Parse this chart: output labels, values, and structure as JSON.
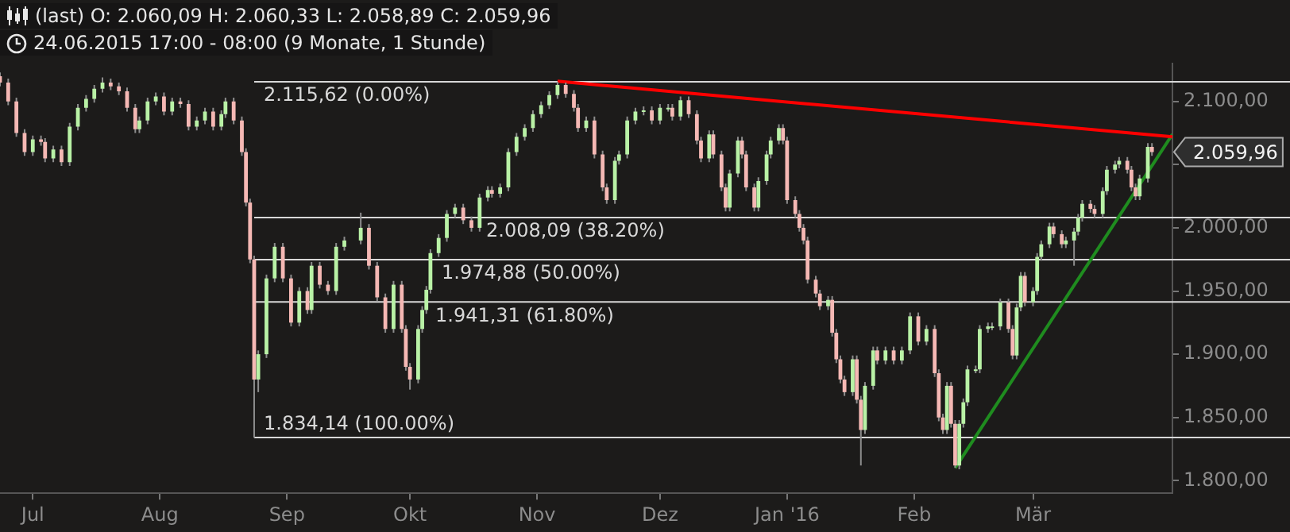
{
  "chart_data": {
    "type": "candlestick",
    "title": "(last)  O: 2.060,09  H: 2.060,33  L: 2.058,89  C: 2.059,96",
    "subtitle": "24.06.2015 17:00 - 08:00 (9 Monate, 1 Stunde)",
    "x": [
      "2015-06-23",
      "2015-06-25",
      "2015-06-27",
      "2015-06-29",
      "2015-07-01",
      "2015-07-03",
      "2015-07-04",
      "2015-07-06",
      "2015-07-08",
      "2015-07-10",
      "2015-07-12",
      "2015-07-14",
      "2015-07-16",
      "2015-07-18",
      "2015-07-20",
      "2015-07-22",
      "2015-07-24",
      "2015-07-26",
      "2015-07-27",
      "2015-07-29",
      "2015-07-31",
      "2015-08-02",
      "2015-08-04",
      "2015-08-06",
      "2015-08-08",
      "2015-08-10",
      "2015-08-12",
      "2015-08-14",
      "2015-08-16",
      "2015-08-17",
      "2015-08-19",
      "2015-08-21",
      "2015-08-22",
      "2015-08-23",
      "2015-08-24",
      "2015-08-25",
      "2015-08-27",
      "2015-08-29",
      "2015-08-31",
      "2015-09-02",
      "2015-09-04",
      "2015-09-06",
      "2015-09-07",
      "2015-09-09",
      "2015-09-11",
      "2015-09-13",
      "2015-09-15",
      "2015-09-19",
      "2015-09-21",
      "2015-09-23",
      "2015-09-25",
      "2015-09-27",
      "2015-09-29",
      "2015-09-30",
      "2015-10-01",
      "2015-10-03",
      "2015-10-04",
      "2015-10-05",
      "2015-10-06",
      "2015-10-08",
      "2015-10-10",
      "2015-10-12",
      "2015-10-14",
      "2015-10-16",
      "2015-10-18",
      "2015-10-20",
      "2015-10-21",
      "2015-10-23",
      "2015-10-25",
      "2015-10-27",
      "2015-10-29",
      "2015-10-31",
      "2015-11-02",
      "2015-11-04",
      "2015-11-06",
      "2015-11-08",
      "2015-11-10",
      "2015-11-11",
      "2015-11-13",
      "2015-11-15",
      "2015-11-17",
      "2015-11-18",
      "2015-11-20",
      "2015-11-21",
      "2015-11-23",
      "2015-11-25",
      "2015-11-27",
      "2015-11-29",
      "2015-12-01",
      "2015-12-03",
      "2015-12-04",
      "2015-12-06",
      "2015-12-08",
      "2015-12-10",
      "2015-12-11",
      "2015-12-13",
      "2015-12-14",
      "2015-12-16",
      "2015-12-17",
      "2015-12-18",
      "2015-12-20",
      "2015-12-21",
      "2015-12-22",
      "2015-12-24",
      "2015-12-25",
      "2015-12-27",
      "2015-12-28",
      "2015-12-30",
      "2015-12-31",
      "2016-01-01",
      "2016-01-03",
      "2016-01-04",
      "2016-01-05",
      "2016-01-06",
      "2016-01-08",
      "2016-01-09",
      "2016-01-11",
      "2016-01-12",
      "2016-01-13",
      "2016-01-14",
      "2016-01-15",
      "2016-01-17",
      "2016-01-18",
      "2016-01-19",
      "2016-01-20",
      "2016-01-22",
      "2016-01-23",
      "2016-01-25",
      "2016-01-27",
      "2016-01-29",
      "2016-01-31",
      "2016-02-02",
      "2016-02-04",
      "2016-02-06",
      "2016-02-07",
      "2016-02-08",
      "2016-02-09",
      "2016-02-10",
      "2016-02-11",
      "2016-02-12",
      "2016-02-13",
      "2016-02-14",
      "2016-02-16",
      "2016-02-17",
      "2016-02-19",
      "2016-02-20",
      "2016-02-22",
      "2016-02-24",
      "2016-02-25",
      "2016-02-26",
      "2016-02-27",
      "2016-02-28",
      "2016-03-01",
      "2016-03-02",
      "2016-03-03",
      "2016-03-05",
      "2016-03-06",
      "2016-03-08",
      "2016-03-09",
      "2016-03-11",
      "2016-03-12",
      "2016-03-13",
      "2016-03-15",
      "2016-03-16",
      "2016-03-18",
      "2016-03-19",
      "2016-03-21",
      "2016-03-22",
      "2016-03-24",
      "2016-03-25",
      "2016-03-26",
      "2016-03-27",
      "2016-03-29",
      "2016-03-30"
    ],
    "ohlc": [
      [
        2120,
        2123,
        2112,
        2115
      ],
      [
        2115,
        2118,
        2097,
        2100
      ],
      [
        2100,
        2103,
        2072,
        2075
      ],
      [
        2075,
        2078,
        2057,
        2060
      ],
      [
        2060,
        2073,
        2057,
        2070
      ],
      [
        2070,
        2073,
        2065,
        2068
      ],
      [
        2068,
        2071,
        2052,
        2055
      ],
      [
        2055,
        2065,
        2052,
        2062
      ],
      [
        2062,
        2065,
        2049,
        2052
      ],
      [
        2052,
        2083,
        2049,
        2080
      ],
      [
        2080,
        2098,
        2077,
        2095
      ],
      [
        2095,
        2105,
        2092,
        2102
      ],
      [
        2102,
        2113,
        2099,
        2110
      ],
      [
        2110,
        2119,
        2107,
        2115
      ],
      [
        2115,
        2118,
        2109,
        2112
      ],
      [
        2112,
        2115,
        2105,
        2108
      ],
      [
        2108,
        2111,
        2092,
        2095
      ],
      [
        2095,
        2098,
        2075,
        2078
      ],
      [
        2078,
        2088,
        2075,
        2085
      ],
      [
        2085,
        2103,
        2082,
        2100
      ],
      [
        2100,
        2107,
        2097,
        2104
      ],
      [
        2104,
        2107,
        2089,
        2092
      ],
      [
        2092,
        2103,
        2089,
        2100
      ],
      [
        2100,
        2103,
        2095,
        2098
      ],
      [
        2098,
        2101,
        2077,
        2080
      ],
      [
        2080,
        2088,
        2077,
        2085
      ],
      [
        2085,
        2095,
        2082,
        2092
      ],
      [
        2092,
        2095,
        2077,
        2080
      ],
      [
        2080,
        2093,
        2077,
        2090
      ],
      [
        2090,
        2103,
        2087,
        2100
      ],
      [
        2100,
        2103,
        2082,
        2085
      ],
      [
        2085,
        2088,
        2057,
        2060
      ],
      [
        2060,
        2063,
        2017,
        2020
      ],
      [
        2020,
        2023,
        1972,
        1975
      ],
      [
        1975,
        1978,
        1834,
        1880
      ],
      [
        1880,
        1903,
        1870,
        1900
      ],
      [
        1900,
        1963,
        1897,
        1960
      ],
      [
        1960,
        1988,
        1957,
        1985
      ],
      [
        1985,
        1988,
        1957,
        1960
      ],
      [
        1960,
        1963,
        1922,
        1925
      ],
      [
        1925,
        1953,
        1922,
        1950
      ],
      [
        1950,
        1953,
        1932,
        1935
      ],
      [
        1935,
        1973,
        1932,
        1970
      ],
      [
        1970,
        1973,
        1952,
        1955
      ],
      [
        1955,
        1958,
        1947,
        1950
      ],
      [
        1950,
        1988,
        1947,
        1985
      ],
      [
        1985,
        1993,
        1982,
        1990
      ],
      [
        1990,
        2012,
        1987,
        2000
      ],
      [
        2000,
        2003,
        1967,
        1970
      ],
      [
        1970,
        1973,
        1942,
        1945
      ],
      [
        1945,
        1948,
        1917,
        1920
      ],
      [
        1920,
        1958,
        1917,
        1955
      ],
      [
        1955,
        1958,
        1917,
        1920
      ],
      [
        1920,
        1923,
        1887,
        1890
      ],
      [
        1890,
        1893,
        1872,
        1880
      ],
      [
        1880,
        1923,
        1877,
        1920
      ],
      [
        1920,
        1938,
        1917,
        1935
      ],
      [
        1935,
        1954,
        1932,
        1951
      ],
      [
        1951,
        1983,
        1948,
        1980
      ],
      [
        1980,
        1995,
        1977,
        1992
      ],
      [
        1992,
        2014,
        1989,
        2011
      ],
      [
        2011,
        2019,
        2008,
        2016
      ],
      [
        2016,
        2019,
        2003,
        2006
      ],
      [
        2006,
        2009,
        1997,
        2000
      ],
      [
        2000,
        2027,
        1997,
        2024
      ],
      [
        2024,
        2033,
        2021,
        2030
      ],
      [
        2030,
        2033,
        2024,
        2027
      ],
      [
        2027,
        2035,
        2024,
        2032
      ],
      [
        2032,
        2063,
        2029,
        2060
      ],
      [
        2060,
        2075,
        2057,
        2072
      ],
      [
        2072,
        2082,
        2069,
        2079
      ],
      [
        2079,
        2093,
        2076,
        2090
      ],
      [
        2090,
        2100,
        2087,
        2097
      ],
      [
        2097,
        2108,
        2094,
        2105
      ],
      [
        2105,
        2115.62,
        2102,
        2113
      ],
      [
        2113,
        2115,
        2103,
        2106
      ],
      [
        2106,
        2109,
        2092,
        2095
      ],
      [
        2095,
        2098,
        2076,
        2079
      ],
      [
        2079,
        2088,
        2076,
        2085
      ],
      [
        2085,
        2088,
        2055,
        2058
      ],
      [
        2058,
        2061,
        2029,
        2032
      ],
      [
        2032,
        2035,
        2019,
        2022
      ],
      [
        2022,
        2056,
        2019,
        2053
      ],
      [
        2053,
        2061,
        2050,
        2058
      ],
      [
        2058,
        2088,
        2055,
        2085
      ],
      [
        2085,
        2095,
        2082,
        2092
      ],
      [
        2092,
        2096,
        2089,
        2093
      ],
      [
        2093,
        2096,
        2082,
        2085
      ],
      [
        2085,
        2098,
        2082,
        2095
      ],
      [
        2095,
        2098,
        2092,
        2095
      ],
      [
        2095,
        2098,
        2085,
        2088
      ],
      [
        2088,
        2104,
        2085,
        2101
      ],
      [
        2101,
        2104,
        2087,
        2090
      ],
      [
        2090,
        2093,
        2066,
        2069
      ],
      [
        2069,
        2072,
        2052,
        2055
      ],
      [
        2055,
        2077,
        2052,
        2074
      ],
      [
        2074,
        2077,
        2055,
        2058
      ],
      [
        2058,
        2061,
        2029,
        2032
      ],
      [
        2032,
        2035,
        2013,
        2016
      ],
      [
        2016,
        2046,
        2013,
        2043
      ],
      [
        2043,
        2072,
        2040,
        2069
      ],
      [
        2069,
        2072,
        2055,
        2058
      ],
      [
        2058,
        2061,
        2029,
        2032
      ],
      [
        2032,
        2035,
        2013,
        2016
      ],
      [
        2016,
        2040,
        2013,
        2037
      ],
      [
        2037,
        2061,
        2034,
        2058
      ],
      [
        2058,
        2072,
        2055,
        2069
      ],
      [
        2069,
        2082,
        2066,
        2079
      ],
      [
        2079,
        2082,
        2066,
        2069
      ],
      [
        2069,
        2072,
        2019,
        2022
      ],
      [
        2022,
        2025,
        2008,
        2011
      ],
      [
        2011,
        2014,
        1997,
        2000
      ],
      [
        2000,
        2003,
        1987,
        1990
      ],
      [
        1990,
        1993,
        1956,
        1959
      ],
      [
        1959,
        1962,
        1945,
        1948
      ],
      [
        1948,
        1951,
        1935,
        1938
      ],
      [
        1938,
        1946,
        1935,
        1943
      ],
      [
        1943,
        1946,
        1914,
        1917
      ],
      [
        1917,
        1920,
        1893,
        1896
      ],
      [
        1896,
        1899,
        1877,
        1880
      ],
      [
        1880,
        1883,
        1867,
        1870
      ],
      [
        1870,
        1899,
        1867,
        1896
      ],
      [
        1896,
        1899,
        1861,
        1864
      ],
      [
        1864,
        1867,
        1812,
        1840
      ],
      [
        1840,
        1878,
        1837,
        1875
      ],
      [
        1875,
        1906,
        1872,
        1903
      ],
      [
        1903,
        1906,
        1892,
        1895
      ],
      [
        1895,
        1906,
        1892,
        1903
      ],
      [
        1903,
        1906,
        1892,
        1895
      ],
      [
        1895,
        1906,
        1892,
        1903
      ],
      [
        1903,
        1933,
        1900,
        1930
      ],
      [
        1930,
        1933,
        1907,
        1910
      ],
      [
        1910,
        1923,
        1907,
        1920
      ],
      [
        1920,
        1923,
        1882,
        1885
      ],
      [
        1885,
        1888,
        1847,
        1850
      ],
      [
        1850,
        1853,
        1837,
        1840
      ],
      [
        1840,
        1878,
        1837,
        1875
      ],
      [
        1875,
        1878,
        1842,
        1845
      ],
      [
        1845,
        1848,
        1810,
        1812
      ],
      [
        1812,
        1848,
        1809,
        1845
      ],
      [
        1845,
        1865,
        1842,
        1862
      ],
      [
        1862,
        1891,
        1859,
        1888
      ],
      [
        1888,
        1891,
        1885,
        1888
      ],
      [
        1888,
        1923,
        1885,
        1920
      ],
      [
        1920,
        1925,
        1917,
        1922
      ],
      [
        1922,
        1925,
        1919,
        1922
      ],
      [
        1922,
        1944,
        1919,
        1941
      ],
      [
        1941,
        1944,
        1917,
        1920
      ],
      [
        1920,
        1923,
        1896,
        1899
      ],
      [
        1899,
        1940,
        1896,
        1937
      ],
      [
        1937,
        1965,
        1934,
        1962
      ],
      [
        1962,
        1965,
        1938,
        1941
      ],
      [
        1941,
        1953,
        1938,
        1950
      ],
      [
        1950,
        1980,
        1947,
        1977
      ],
      [
        1977,
        1990,
        1974,
        1987
      ],
      [
        1987,
        2004,
        1984,
        2001
      ],
      [
        2001,
        2004,
        1992,
        1995
      ],
      [
        1995,
        1998,
        1984,
        1987
      ],
      [
        1987,
        1993,
        1984,
        1990
      ],
      [
        1990,
        2000,
        1970,
        1997
      ],
      [
        1997,
        2011,
        1994,
        2008
      ],
      [
        2008,
        2022,
        2005,
        2019
      ],
      [
        2019,
        2022,
        2012,
        2015
      ],
      [
        2015,
        2018,
        2008,
        2011
      ],
      [
        2011,
        2032,
        2008,
        2029
      ],
      [
        2029,
        2049,
        2026,
        2046
      ],
      [
        2046,
        2053,
        2043,
        2050
      ],
      [
        2050,
        2056,
        2047,
        2053
      ],
      [
        2053,
        2056,
        2043,
        2046
      ],
      [
        2046,
        2049,
        2029,
        2032
      ],
      [
        2032,
        2035,
        2022,
        2025
      ],
      [
        2025,
        2042,
        2022,
        2039
      ],
      [
        2039,
        2067,
        2036,
        2064
      ],
      [
        2064,
        2067,
        2057,
        2059.96
      ]
    ],
    "series": [
      {
        "type": "line",
        "color": "#ff0000",
        "x": [
          "2015-11-06",
          "2016-04-04"
        ],
        "values": [
          2116,
          2072
        ]
      },
      {
        "type": "line",
        "color": "#1f8c1f",
        "x": [
          "2016-02-11",
          "2016-04-04"
        ],
        "values": [
          1810,
          2074
        ]
      }
    ],
    "xlim": [
      "2015-06-23",
      "2016-04-04"
    ],
    "xticks": [
      {
        "value": "2015-07-01",
        "label": "Jul"
      },
      {
        "value": "2015-08-01",
        "label": "Aug"
      },
      {
        "value": "2015-09-01",
        "label": "Sep"
      },
      {
        "value": "2015-10-01",
        "label": "Okt"
      },
      {
        "value": "2015-11-01",
        "label": "Nov"
      },
      {
        "value": "2015-12-01",
        "label": "Dez"
      },
      {
        "value": "2016-01-01",
        "label": "Jan '16"
      },
      {
        "value": "2016-02-01",
        "label": "Feb"
      },
      {
        "value": "2016-03-01",
        "label": "Mär"
      }
    ],
    "ylim": [
      1790,
      2130
    ],
    "yticks": [
      {
        "value": 1800,
        "label": "1.800,00"
      },
      {
        "value": 1850,
        "label": "1.850,00"
      },
      {
        "value": 1900,
        "label": "1.900,00"
      },
      {
        "value": 1950,
        "label": "1.950,00"
      },
      {
        "value": 2000,
        "label": "2.000,00"
      },
      {
        "value": 2050,
        "label": null
      },
      {
        "value": 2100,
        "label": "2.100,00"
      }
    ],
    "ref_lines": [
      {
        "axis": "y",
        "value": 2115.62,
        "label": "2.115,62 (0.00%)",
        "color": "#d8d8d8"
      },
      {
        "axis": "y",
        "value": 2008.09,
        "label": "2.008,09 (38.20%)",
        "color": "#d8d8d8"
      },
      {
        "axis": "y",
        "value": 1974.88,
        "label": "1.974,88 (50.00%)",
        "color": "#d8d8d8"
      },
      {
        "axis": "y",
        "value": 1941.31,
        "label": "1.941,31 (61.80%)",
        "color": "#d8d8d8"
      },
      {
        "axis": "y",
        "value": 1834.14,
        "label": "1.834,14 (100.00%)",
        "color": "#d8d8d8"
      }
    ],
    "annotations": [
      "2.059,96"
    ]
  }
}
